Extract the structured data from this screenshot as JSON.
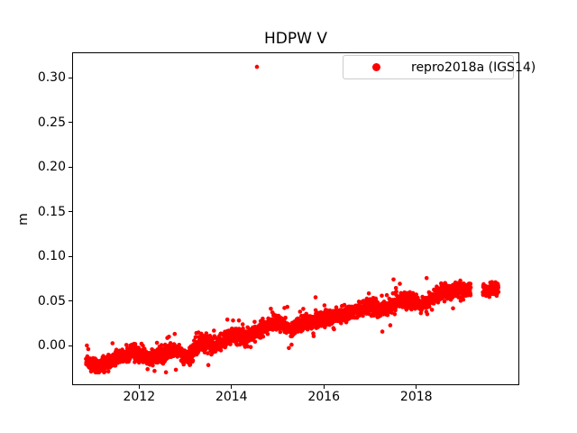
{
  "chart_data": {
    "type": "scatter",
    "title": "HDPW V",
    "xlabel": "",
    "ylabel": "m",
    "xlim": [
      2010.55,
      2020.23
    ],
    "ylim": [
      -0.0444,
      0.3283
    ],
    "xticks": [
      2012,
      2014,
      2016,
      2018
    ],
    "xtick_labels": [
      "2012",
      "2014",
      "2016",
      "2018"
    ],
    "yticks": [
      0.0,
      0.05,
      0.1,
      0.15,
      0.2,
      0.25,
      0.3
    ],
    "ytick_labels": [
      "0.00",
      "0.05",
      "0.10",
      "0.15",
      "0.20",
      "0.25",
      "0.30"
    ],
    "grid": false,
    "background": "#ffffff",
    "spine_color": "#000000",
    "legend": {
      "position": "upper right",
      "border_color": "#cccccc",
      "entries": [
        {
          "label": "repro2018a (IGS14)",
          "color": "#ff0000",
          "marker": "circle"
        }
      ]
    },
    "series": [
      {
        "name": "repro2018a (IGS14)",
        "color": "#ff0000",
        "marker": "circle",
        "marker_radius_px": 2.3,
        "segments": [
          {
            "range": [
              2010.85,
              2019.18
            ],
            "points_per_year": 330,
            "noise_sd": 0.0042,
            "tail_prob": 0.07,
            "tail_sd": 0.008,
            "clamp": [
              -0.03,
              0.077
            ],
            "trend": [
              [
                2010.85,
                -0.018
              ],
              [
                2011.0,
                -0.021
              ],
              [
                2011.15,
                -0.023
              ],
              [
                2011.3,
                -0.019
              ],
              [
                2011.5,
                -0.013
              ],
              [
                2011.7,
                -0.012
              ],
              [
                2011.85,
                -0.007
              ],
              [
                2012.0,
                -0.009
              ],
              [
                2012.2,
                -0.015
              ],
              [
                2012.4,
                -0.01
              ],
              [
                2012.6,
                -0.008
              ],
              [
                2012.8,
                -0.006
              ],
              [
                2013.0,
                -0.013
              ],
              [
                2013.15,
                -0.009
              ],
              [
                2013.3,
                0.002
              ],
              [
                2013.45,
                0.003
              ],
              [
                2013.6,
                -0.001
              ],
              [
                2013.75,
                0.002
              ],
              [
                2013.9,
                0.008
              ],
              [
                2014.05,
                0.012
              ],
              [
                2014.25,
                0.008
              ],
              [
                2014.45,
                0.013
              ],
              [
                2014.65,
                0.019
              ],
              [
                2014.85,
                0.025
              ],
              [
                2015.0,
                0.027
              ],
              [
                2015.15,
                0.022
              ],
              [
                2015.3,
                0.018
              ],
              [
                2015.45,
                0.023
              ],
              [
                2015.6,
                0.025
              ],
              [
                2015.8,
                0.028
              ],
              [
                2016.0,
                0.031
              ],
              [
                2016.2,
                0.032
              ],
              [
                2016.4,
                0.036
              ],
              [
                2016.6,
                0.038
              ],
              [
                2016.8,
                0.041
              ],
              [
                2016.95,
                0.046
              ],
              [
                2017.1,
                0.044
              ],
              [
                2017.25,
                0.041
              ],
              [
                2017.4,
                0.043
              ],
              [
                2017.55,
                0.048
              ],
              [
                2017.7,
                0.051
              ],
              [
                2017.85,
                0.051
              ],
              [
                2018.0,
                0.05
              ],
              [
                2018.15,
                0.046
              ],
              [
                2018.3,
                0.05
              ],
              [
                2018.45,
                0.057
              ],
              [
                2018.6,
                0.061
              ],
              [
                2018.75,
                0.06
              ],
              [
                2018.9,
                0.063
              ],
              [
                2019.05,
                0.061
              ],
              [
                2019.18,
                0.063
              ]
            ]
          },
          {
            "range": [
              2019.44,
              2019.78
            ],
            "points_per_year": 330,
            "noise_sd": 0.0035,
            "tail_prob": 0.02,
            "tail_sd": 0.005,
            "clamp": [
              0.053,
              0.071
            ],
            "trend": [
              [
                2019.44,
                0.062
              ],
              [
                2019.78,
                0.063
              ]
            ]
          }
        ],
        "outlier_points": [
          [
            2014.55,
            0.312
          ],
          [
            2010.87,
            0.0
          ],
          [
            2010.9,
            -0.004
          ],
          [
            2013.91,
            0.029
          ],
          [
            2014.16,
            0.028
          ],
          [
            2015.3,
            0.001
          ],
          [
            2015.82,
            0.054
          ],
          [
            2012.77,
            0.013
          ],
          [
            2013.24,
            0.014
          ]
        ]
      }
    ]
  }
}
